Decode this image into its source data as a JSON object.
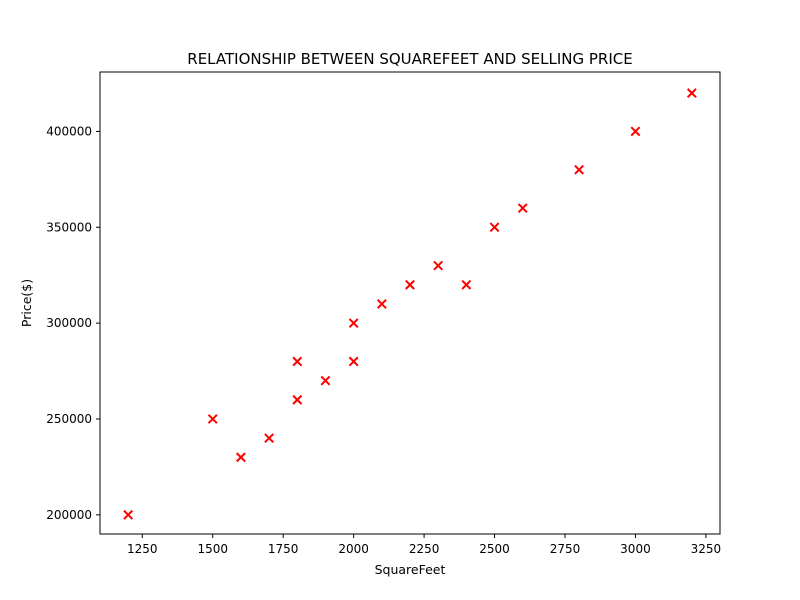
{
  "chart_data": {
    "type": "scatter",
    "title": "RELATIONSHIP BETWEEN SQUAREFEET AND SELLING PRICE",
    "xlabel": "SquareFeet",
    "ylabel": "Price($)",
    "xlim": [
      1100,
      3300
    ],
    "ylim": [
      190000,
      431000
    ],
    "xticks": [
      1250,
      1500,
      1750,
      2000,
      2250,
      2500,
      2750,
      3000,
      3250
    ],
    "xtick_labels": [
      "1250",
      "1500",
      "1750",
      "2000",
      "2250",
      "2500",
      "2750",
      "3000",
      "3250"
    ],
    "yticks": [
      200000,
      250000,
      300000,
      350000,
      400000
    ],
    "ytick_labels": [
      "200000",
      "250000",
      "300000",
      "350000",
      "400000"
    ],
    "grid": false,
    "marker": "x",
    "marker_color": "#ff0000",
    "series": [
      {
        "x": [
          1200,
          1500,
          1600,
          1700,
          1800,
          1800,
          1900,
          2000,
          2000,
          2100,
          2200,
          2300,
          2400,
          2500,
          2600,
          2800,
          3000,
          3200
        ],
        "y": [
          200000,
          250000,
          230000,
          240000,
          280000,
          260000,
          270000,
          300000,
          280000,
          310000,
          320000,
          330000,
          320000,
          350000,
          360000,
          380000,
          400000,
          420000
        ]
      }
    ]
  }
}
